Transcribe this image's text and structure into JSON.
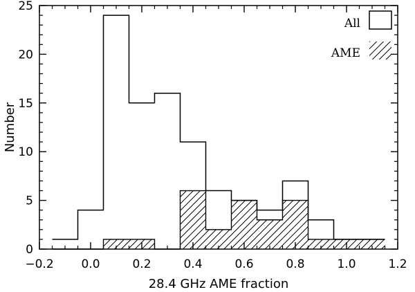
{
  "chart_data": {
    "type": "bar",
    "title": "",
    "xlabel": "28.4 GHz AME fraction",
    "ylabel": "Number",
    "xlim": [
      -0.2,
      1.2
    ],
    "ylim": [
      0,
      25
    ],
    "grid": false,
    "legend_position": "top-right",
    "x_ticks": [
      "−0.2",
      "0.0",
      "0.2",
      "0.4",
      "0.6",
      "0.8",
      "1.0",
      "1.2"
    ],
    "y_ticks": [
      "0",
      "5",
      "10",
      "15",
      "20",
      "25"
    ],
    "bin_width": 0.1,
    "bin_centers": [
      -0.1,
      0.0,
      0.1,
      0.2,
      0.3,
      0.4,
      0.5,
      0.6,
      0.7,
      0.8,
      0.9,
      1.0,
      1.1
    ],
    "series": [
      {
        "name": "All",
        "style": "outline",
        "values": [
          1,
          4,
          24,
          15,
          16,
          11,
          6,
          5,
          4,
          7,
          3,
          1,
          1
        ]
      },
      {
        "name": "AME",
        "style": "hatched",
        "values": [
          0,
          0,
          1,
          1,
          0,
          6,
          2,
          5,
          3,
          5,
          1,
          1,
          1
        ]
      }
    ]
  }
}
